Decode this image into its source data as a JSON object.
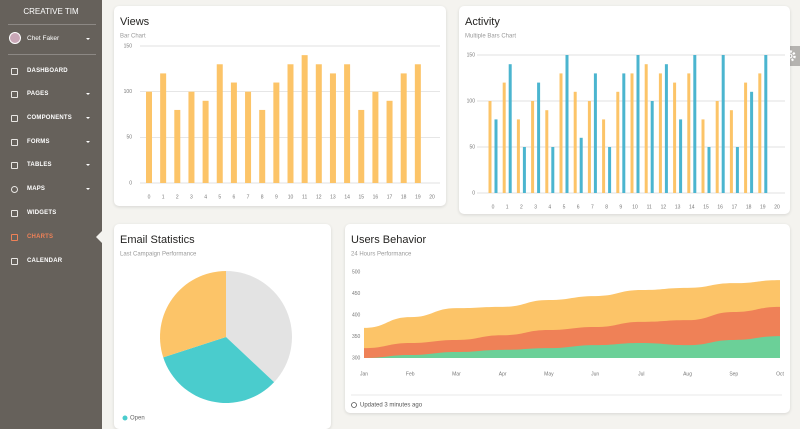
{
  "sidebar": {
    "brand": "CREATIVE TIM",
    "user": "Chet Faker",
    "items": [
      "DASHBOARD",
      "PAGES",
      "COMPONENTS",
      "FORMS",
      "TABLES",
      "MAPS",
      "WIDGETS",
      "CHARTS",
      "CALENDAR"
    ]
  },
  "chart_data": [
    {
      "type": "bar",
      "title": "Views",
      "subtitle": "Bar Chart",
      "x": [
        0,
        1,
        2,
        3,
        4,
        5,
        6,
        7,
        8,
        9,
        10,
        11,
        12,
        13,
        14,
        15,
        16,
        17,
        18,
        19,
        20
      ],
      "values": [
        100,
        120,
        80,
        100,
        90,
        130,
        110,
        100,
        80,
        110,
        130,
        140,
        130,
        120,
        130,
        80,
        100,
        90,
        120,
        130,
        null
      ],
      "color": "#fcc468",
      "ylim": [
        0,
        150
      ],
      "yticks": [
        0,
        50,
        100,
        150
      ],
      "grid": true
    },
    {
      "type": "bar",
      "title": "Activity",
      "subtitle": "Multiple Bars Chart",
      "x": [
        0,
        1,
        2,
        3,
        4,
        5,
        6,
        7,
        8,
        9,
        10,
        11,
        12,
        13,
        14,
        15,
        16,
        17,
        18,
        19,
        20
      ],
      "series": [
        {
          "color": "#fcc468",
          "values": [
            100,
            120,
            80,
            100,
            90,
            130,
            110,
            100,
            80,
            110,
            130,
            140,
            130,
            120,
            130,
            80,
            100,
            90,
            120,
            130,
            null
          ]
        },
        {
          "color": "#4bb5cf",
          "values": [
            80,
            140,
            50,
            120,
            50,
            150,
            60,
            130,
            50,
            130,
            150,
            100,
            140,
            80,
            150,
            50,
            150,
            50,
            110,
            150,
            null
          ]
        }
      ],
      "ylim": [
        0,
        150
      ],
      "yticks": [
        0,
        50,
        100,
        150
      ],
      "grid": true
    },
    {
      "type": "pie",
      "title": "Email Statistics",
      "subtitle": "Last Campaign Performance",
      "categories": [
        null,
        "Open",
        null
      ],
      "values": [
        37,
        33,
        30
      ],
      "colors": [
        "#e3e3e3",
        "#4acccd",
        "#fcc468"
      ]
    },
    {
      "type": "area",
      "title": "Users Behavior",
      "subtitle": "24 Hours Performance",
      "categories": [
        "Jan",
        "Feb",
        "Mar",
        "Apr",
        "May",
        "Jun",
        "Jul",
        "Aug",
        "Sep",
        "Oct"
      ],
      "series": [
        {
          "color": "#fcc468",
          "values": [
            370,
            395,
            416,
            419,
            435,
            444,
            458,
            463,
            474,
            481
          ]
        },
        {
          "color": "#ef8157",
          "values": [
            323,
            335,
            342,
            353,
            365,
            372,
            384,
            388,
            407,
            419
          ]
        },
        {
          "color": "#6bd098",
          "values": [
            300,
            307,
            314,
            319,
            323,
            330,
            335,
            330,
            342,
            351
          ]
        }
      ],
      "ylim": [
        300,
        500
      ],
      "yticks": [
        300,
        350,
        400,
        450,
        500
      ],
      "grid": false,
      "footer": "Updated 3 minutes ago"
    }
  ]
}
